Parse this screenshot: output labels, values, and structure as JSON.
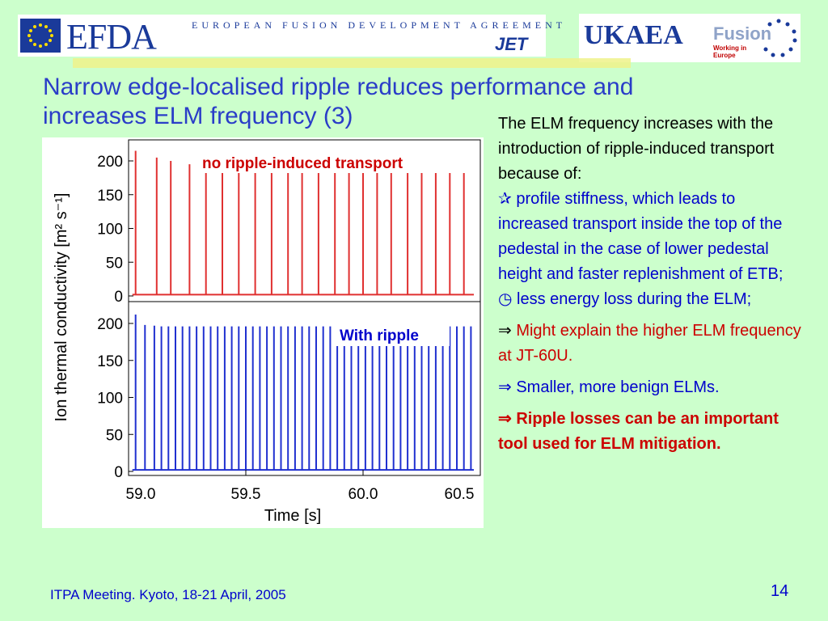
{
  "header": {
    "efda_logo": {
      "word": "EFDA",
      "subtitle": "EUROPEAN FUSION DEVELOPMENT AGREEMENT",
      "jet": "JET",
      "flag_color": "#1a3a9a"
    },
    "ukaea_logo": {
      "word": "UKAEA",
      "fusion": "Fusion",
      "tagline": "Working in Europe"
    }
  },
  "slide_title": "Narrow edge-localised ripple reduces performance and increases ELM frequency (3)",
  "chart_data": [
    {
      "type": "line",
      "annotation": "no ripple-induced transport",
      "color": "#e03030",
      "ylabel": "Ion thermal conductivity [m² s⁻¹]",
      "ylim": [
        0,
        220
      ],
      "yticks": [
        "200",
        "150",
        "100",
        "50",
        "0"
      ],
      "xlim": [
        59.0,
        60.5
      ],
      "baseline": 2,
      "spike_times": [
        59.03,
        59.12,
        59.18,
        59.26,
        59.33,
        59.4,
        59.47,
        59.54,
        59.61,
        59.68,
        59.74,
        59.81,
        59.88,
        59.94,
        60.0,
        60.06,
        60.12,
        60.19,
        60.25,
        60.31,
        60.37,
        60.43
      ],
      "spike_values": [
        215,
        205,
        200,
        195,
        190,
        190,
        190,
        190,
        190,
        190,
        190,
        190,
        190,
        190,
        190,
        190,
        190,
        190,
        190,
        190,
        190,
        190
      ]
    },
    {
      "type": "line",
      "annotation": "With ripple",
      "color": "#2030d0",
      "ylim": [
        0,
        220
      ],
      "yticks": [
        "200",
        "150",
        "100",
        "50",
        "0"
      ],
      "xlim": [
        59.0,
        60.5
      ],
      "xticks": [
        "59.0",
        "59.5",
        "60.0",
        "60.5"
      ],
      "xlabel": "Time [s]",
      "baseline": 2,
      "spike_times": [
        59.03,
        59.07,
        59.11,
        59.14,
        59.17,
        59.2,
        59.23,
        59.26,
        59.29,
        59.32,
        59.35,
        59.38,
        59.41,
        59.44,
        59.47,
        59.5,
        59.53,
        59.56,
        59.59,
        59.62,
        59.65,
        59.68,
        59.71,
        59.74,
        59.77,
        59.8,
        59.83,
        59.86,
        59.89,
        59.92,
        59.95,
        59.98,
        60.01,
        60.04,
        60.07,
        60.1,
        60.13,
        60.16,
        60.19,
        60.22,
        60.25,
        60.28,
        60.31,
        60.34,
        60.37,
        60.4,
        60.43,
        60.46
      ],
      "spike_values": [
        212,
        198,
        197,
        196,
        196,
        196,
        196,
        196,
        196,
        196,
        196,
        196,
        196,
        196,
        196,
        196,
        196,
        196,
        196,
        196,
        196,
        196,
        196,
        196,
        196,
        196,
        196,
        196,
        196,
        196,
        196,
        196,
        196,
        196,
        196,
        196,
        196,
        196,
        196,
        196,
        196,
        196,
        196,
        196,
        196,
        196,
        196,
        196
      ]
    }
  ],
  "text_panel": {
    "intro": "The ELM frequency increases with the introduction of ripple-induced transport because of:",
    "bullet1_symbol": "✰",
    "bullet1": "profile stiffness, which leads to increased transport inside the top of the pedestal in the case of lower pedestal height and faster replenishment of ETB;",
    "bullet2_symbol": "◷",
    "bullet2": "less energy loss during the ELM;",
    "arrow": "⇒",
    "point1": "Might explain the higher ELM frequency at JT-60U.",
    "point2": "Smaller, more benign ELMs.",
    "point3": "Ripple losses can be an important tool used for ELM mitigation."
  },
  "footer": {
    "meeting": "ITPA Meeting. Kyoto, 18-21 April, 2005",
    "page_number": "14"
  }
}
